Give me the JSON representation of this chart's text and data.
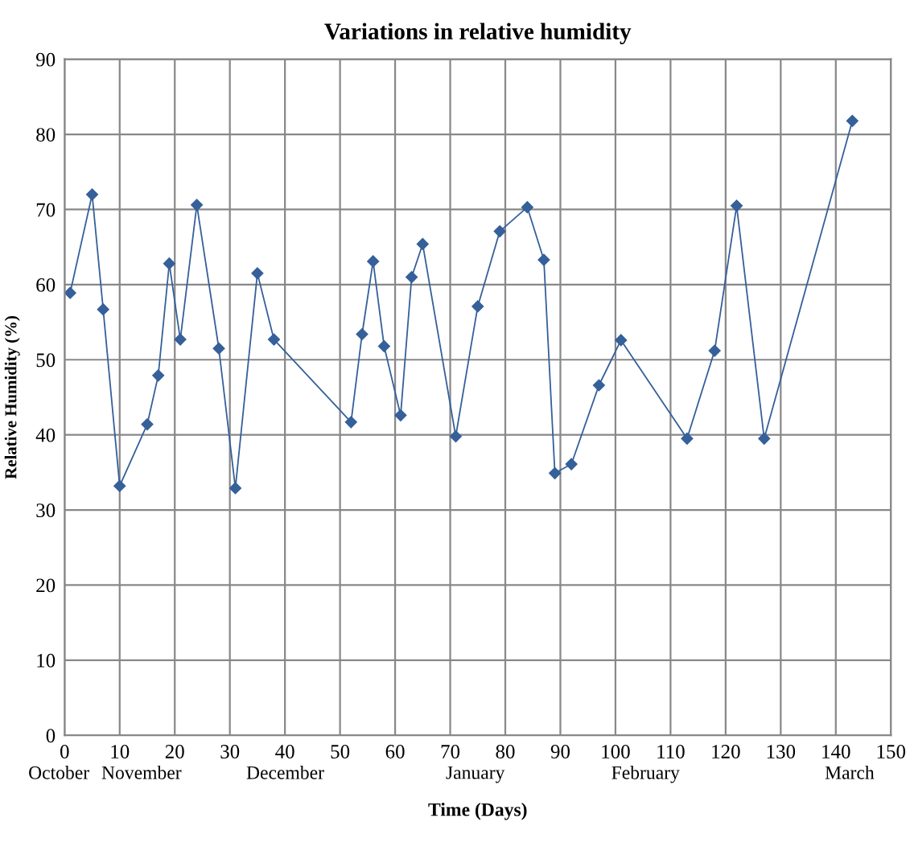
{
  "chart_data": {
    "type": "line",
    "title": "Variations in relative humidity",
    "xlabel": "Time (Days)",
    "ylabel": "Relative Humidity (%)",
    "x": [
      1,
      5,
      7,
      10,
      15,
      17,
      19,
      21,
      24,
      28,
      31,
      35,
      38,
      52,
      54,
      56,
      58,
      61,
      63,
      65,
      71,
      75,
      79,
      84,
      87,
      89,
      92,
      97,
      101,
      113,
      118,
      122,
      127,
      143
    ],
    "series": [
      {
        "color": "#35609a",
        "values": [
          58.9,
          72.0,
          56.7,
          33.2,
          41.4,
          47.9,
          62.8,
          52.7,
          70.6,
          51.5,
          32.9,
          61.5,
          52.7,
          41.7,
          53.4,
          63.1,
          51.8,
          42.6,
          61.0,
          65.4,
          39.8,
          57.1,
          67.1,
          70.3,
          63.3,
          34.9,
          36.1,
          46.6,
          52.6,
          39.5,
          51.2,
          70.5,
          39.5,
          81.8
        ]
      }
    ],
    "xlim": [
      0,
      150
    ],
    "xticks": [
      0,
      10,
      20,
      30,
      40,
      50,
      60,
      70,
      80,
      90,
      100,
      110,
      120,
      130,
      140,
      150
    ],
    "annotations": [
      "October",
      "November",
      "December",
      "January",
      "February",
      "March"
    ],
    "ylim": [
      0,
      90
    ],
    "yticks": [
      0,
      10,
      20,
      30,
      40,
      50,
      60,
      70,
      80,
      90
    ],
    "grid": true,
    "marker": "diamond",
    "line_style": "solid"
  }
}
